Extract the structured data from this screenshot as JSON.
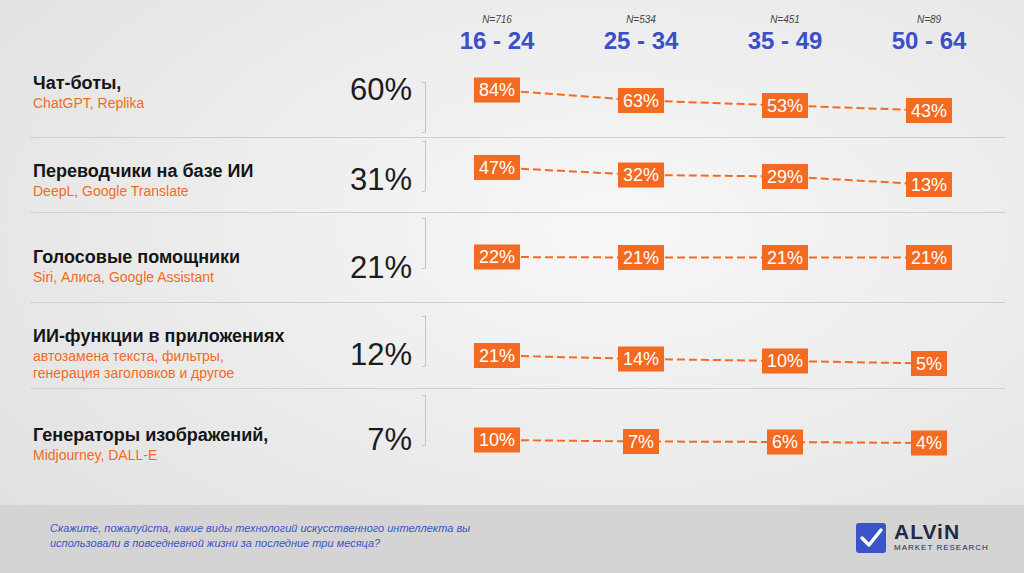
{
  "header": {
    "sample_size_labels": [
      "N=716",
      "N=534",
      "N=451",
      "N=89"
    ]
  },
  "chart_data": [
    {
      "type": "line",
      "title": "Чат-боты,",
      "subtitle": "ChatGPT, Replika",
      "total": 60,
      "total_label": "60%",
      "categories": [
        "16 - 24",
        "25 - 34",
        "35 - 49",
        "50 - 64"
      ],
      "values": [
        84,
        63,
        53,
        43
      ],
      "value_labels": [
        "84%",
        "63%",
        "53%",
        "43%"
      ],
      "color": "#f26b21",
      "line_style": "dashed",
      "data_labels": true,
      "ylim": [
        0,
        100
      ],
      "yticks": [
        0,
        100
      ],
      "tick_labels": "x",
      "grid": false
    },
    {
      "type": "line",
      "title": "Переводчики на базе ИИ",
      "subtitle": "DeepL, Google Translate",
      "total": 31,
      "total_label": "31%",
      "categories": [
        "16 - 24",
        "25 - 34",
        "35 - 49",
        "50 - 64"
      ],
      "values": [
        47,
        32,
        29,
        13
      ],
      "value_labels": [
        "47%",
        "32%",
        "29%",
        "13%"
      ],
      "color": "#f26b21",
      "line_style": "dashed",
      "data_labels": true,
      "ylim": [
        0,
        100
      ],
      "yticks": [
        0,
        100
      ],
      "tick_labels": false,
      "grid": false
    },
    {
      "type": "line",
      "title": "Голосовые помощники",
      "subtitle": "Siri, Алиса, Google Assistant",
      "total": 21,
      "total_label": "21%",
      "categories": [
        "16 - 24",
        "25 - 34",
        "35 - 49",
        "50 - 64"
      ],
      "values": [
        22,
        21,
        21,
        21
      ],
      "value_labels": [
        "22%",
        "21%",
        "21%",
        "21%"
      ],
      "color": "#f26b21",
      "line_style": "dashed",
      "data_labels": true,
      "ylim": [
        0,
        100
      ],
      "yticks": [
        0,
        100
      ],
      "tick_labels": false,
      "grid": false
    },
    {
      "type": "line",
      "title": "ИИ-функции в приложениях",
      "subtitle": "автозамена текста, фильтры, генерация заголовков и другое",
      "total": 12,
      "total_label": "12%",
      "categories": [
        "16 - 24",
        "25 - 34",
        "35 - 49",
        "50 - 64"
      ],
      "values": [
        21,
        14,
        10,
        5
      ],
      "value_labels": [
        "21%",
        "14%",
        "10%",
        "5%"
      ],
      "color": "#f26b21",
      "line_style": "dashed",
      "data_labels": true,
      "ylim": [
        0,
        100
      ],
      "yticks": [
        0,
        100
      ],
      "tick_labels": false,
      "grid": false
    },
    {
      "type": "line",
      "title": "Генераторы изображений,",
      "subtitle": "Midjourney, DALL-E",
      "total": 7,
      "total_label": "7%",
      "categories": [
        "16 - 24",
        "25 - 34",
        "35 - 49",
        "50 - 64"
      ],
      "values": [
        10,
        7,
        6,
        4
      ],
      "value_labels": [
        "10%",
        "7%",
        "6%",
        "4%"
      ],
      "color": "#f26b21",
      "line_style": "dashed",
      "data_labels": true,
      "ylim": [
        0,
        100
      ],
      "yticks": [
        0,
        100
      ],
      "tick_labels": false,
      "grid": false
    }
  ],
  "footer": {
    "question": "Скажите, пожалуйста, какие виды технологий искусственного интеллекта вы использовали в повседневной жизни за последние три месяца?",
    "logo": "ALViN",
    "logo_subtitle": "MARKET RESEARCH"
  }
}
